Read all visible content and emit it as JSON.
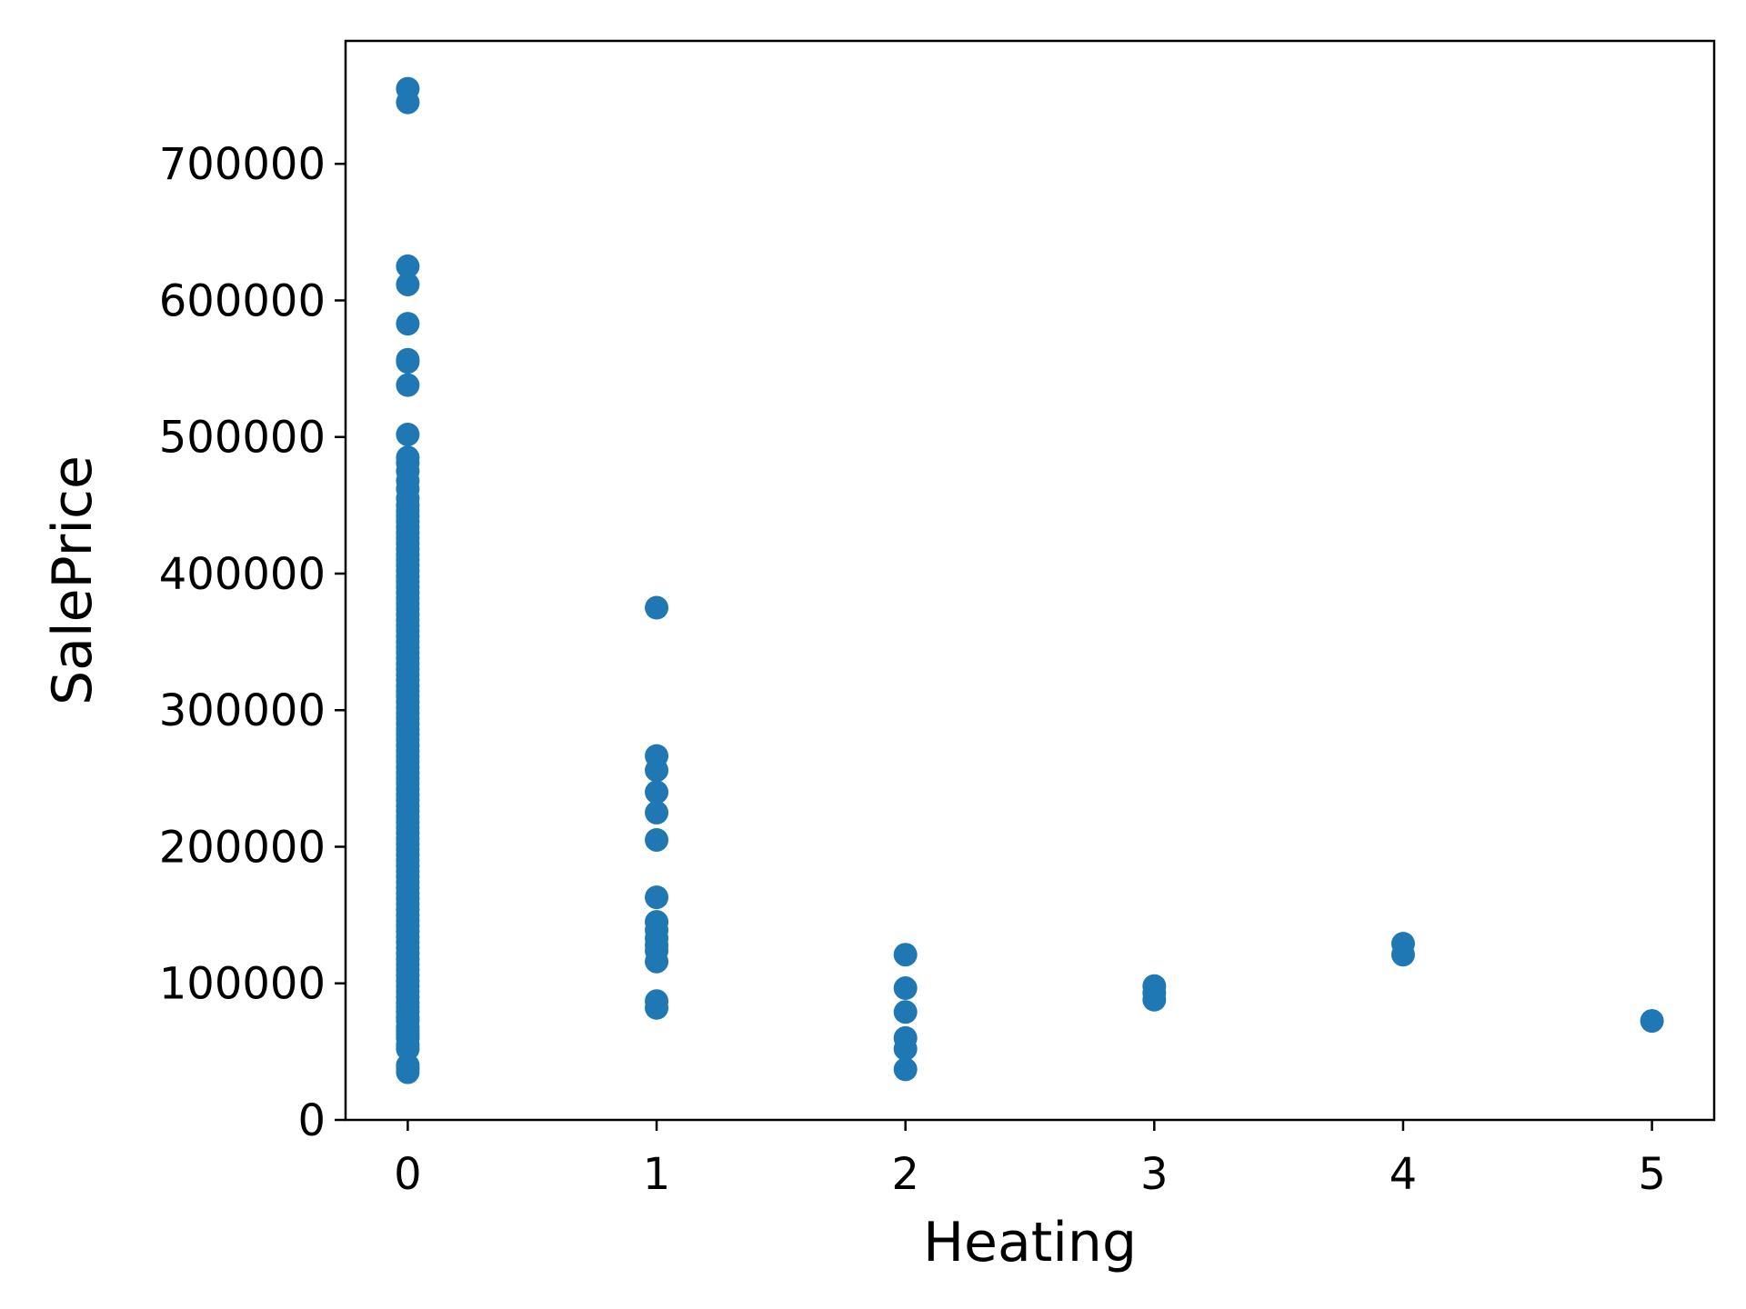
{
  "chart_data": {
    "type": "scatter",
    "title": "",
    "xlabel": "Heating",
    "ylabel": "SalePrice",
    "xlim": [
      -0.25,
      5.25
    ],
    "ylim": [
      0,
      790000
    ],
    "grid": false,
    "legend": "none",
    "x_ticks": [
      {
        "value": 0,
        "label": "0"
      },
      {
        "value": 1,
        "label": "1"
      },
      {
        "value": 2,
        "label": "2"
      },
      {
        "value": 3,
        "label": "3"
      },
      {
        "value": 4,
        "label": "4"
      },
      {
        "value": 5,
        "label": "5"
      }
    ],
    "y_ticks": [
      {
        "value": 0,
        "label": "0"
      },
      {
        "value": 100000,
        "label": "100000"
      },
      {
        "value": 200000,
        "label": "200000"
      },
      {
        "value": 300000,
        "label": "300000"
      },
      {
        "value": 400000,
        "label": "400000"
      },
      {
        "value": 500000,
        "label": "500000"
      },
      {
        "value": 600000,
        "label": "600000"
      },
      {
        "value": 700000,
        "label": "700000"
      }
    ],
    "series": [
      {
        "color": "#1f77b4",
        "points": [
          [
            0,
            34900
          ],
          [
            0,
            37900
          ],
          [
            0,
            40000
          ],
          [
            0,
            52000
          ],
          [
            0,
            55000
          ],
          [
            0,
            60000
          ],
          [
            0,
            62500
          ],
          [
            0,
            65000
          ],
          [
            0,
            68000
          ],
          [
            0,
            72500
          ],
          [
            0,
            75000
          ],
          [
            0,
            79000
          ],
          [
            0,
            82500
          ],
          [
            0,
            86000
          ],
          [
            0,
            90000
          ],
          [
            0,
            94000
          ],
          [
            0,
            98000
          ],
          [
            0,
            102000
          ],
          [
            0,
            106000
          ],
          [
            0,
            110000
          ],
          [
            0,
            114000
          ],
          [
            0,
            118000
          ],
          [
            0,
            122000
          ],
          [
            0,
            126000
          ],
          [
            0,
            130000
          ],
          [
            0,
            134000
          ],
          [
            0,
            138000
          ],
          [
            0,
            142000
          ],
          [
            0,
            146000
          ],
          [
            0,
            150000
          ],
          [
            0,
            154000
          ],
          [
            0,
            158000
          ],
          [
            0,
            162000
          ],
          [
            0,
            166000
          ],
          [
            0,
            170000
          ],
          [
            0,
            174000
          ],
          [
            0,
            178000
          ],
          [
            0,
            182000
          ],
          [
            0,
            186000
          ],
          [
            0,
            190000
          ],
          [
            0,
            194000
          ],
          [
            0,
            198000
          ],
          [
            0,
            202000
          ],
          [
            0,
            206000
          ],
          [
            0,
            210000
          ],
          [
            0,
            214000
          ],
          [
            0,
            218000
          ],
          [
            0,
            222000
          ],
          [
            0,
            226000
          ],
          [
            0,
            230000
          ],
          [
            0,
            234000
          ],
          [
            0,
            238000
          ],
          [
            0,
            242000
          ],
          [
            0,
            246000
          ],
          [
            0,
            250000
          ],
          [
            0,
            254000
          ],
          [
            0,
            258000
          ],
          [
            0,
            262000
          ],
          [
            0,
            266000
          ],
          [
            0,
            270000
          ],
          [
            0,
            274000
          ],
          [
            0,
            278000
          ],
          [
            0,
            282000
          ],
          [
            0,
            286000
          ],
          [
            0,
            290000
          ],
          [
            0,
            294000
          ],
          [
            0,
            298000
          ],
          [
            0,
            302000
          ],
          [
            0,
            306000
          ],
          [
            0,
            310000
          ],
          [
            0,
            314000
          ],
          [
            0,
            318000
          ],
          [
            0,
            322000
          ],
          [
            0,
            326000
          ],
          [
            0,
            330000
          ],
          [
            0,
            334000
          ],
          [
            0,
            338000
          ],
          [
            0,
            342000
          ],
          [
            0,
            346000
          ],
          [
            0,
            350000
          ],
          [
            0,
            354000
          ],
          [
            0,
            358000
          ],
          [
            0,
            362000
          ],
          [
            0,
            366000
          ],
          [
            0,
            370000
          ],
          [
            0,
            374000
          ],
          [
            0,
            378000
          ],
          [
            0,
            382000
          ],
          [
            0,
            386000
          ],
          [
            0,
            390000
          ],
          [
            0,
            394000
          ],
          [
            0,
            398000
          ],
          [
            0,
            402000
          ],
          [
            0,
            406000
          ],
          [
            0,
            410000
          ],
          [
            0,
            414000
          ],
          [
            0,
            418000
          ],
          [
            0,
            422000
          ],
          [
            0,
            426000
          ],
          [
            0,
            430000
          ],
          [
            0,
            434000
          ],
          [
            0,
            438000
          ],
          [
            0,
            442000
          ],
          [
            0,
            446000
          ],
          [
            0,
            450000
          ],
          [
            0,
            455000
          ],
          [
            0,
            462000
          ],
          [
            0,
            468000
          ],
          [
            0,
            475000
          ],
          [
            0,
            481000
          ],
          [
            0,
            485000
          ],
          [
            0,
            501837
          ],
          [
            0,
            538000
          ],
          [
            0,
            555000
          ],
          [
            0,
            556581
          ],
          [
            0,
            582933
          ],
          [
            0,
            611657
          ],
          [
            0,
            625000
          ],
          [
            0,
            745000
          ],
          [
            0,
            755000
          ],
          [
            1,
            375000
          ],
          [
            1,
            266500
          ],
          [
            1,
            256000
          ],
          [
            1,
            240000
          ],
          [
            1,
            225000
          ],
          [
            1,
            205000
          ],
          [
            1,
            163000
          ],
          [
            1,
            145000
          ],
          [
            1,
            139000
          ],
          [
            1,
            133000
          ],
          [
            1,
            128000
          ],
          [
            1,
            124000
          ],
          [
            1,
            116000
          ],
          [
            1,
            87000
          ],
          [
            1,
            82000
          ],
          [
            2,
            121000
          ],
          [
            2,
            96500
          ],
          [
            2,
            79000
          ],
          [
            2,
            60000
          ],
          [
            2,
            52000
          ],
          [
            2,
            37000
          ],
          [
            3,
            98000
          ],
          [
            3,
            93000
          ],
          [
            3,
            88000
          ],
          [
            4,
            129000
          ],
          [
            4,
            121000
          ],
          [
            5,
            72500
          ]
        ]
      }
    ]
  }
}
